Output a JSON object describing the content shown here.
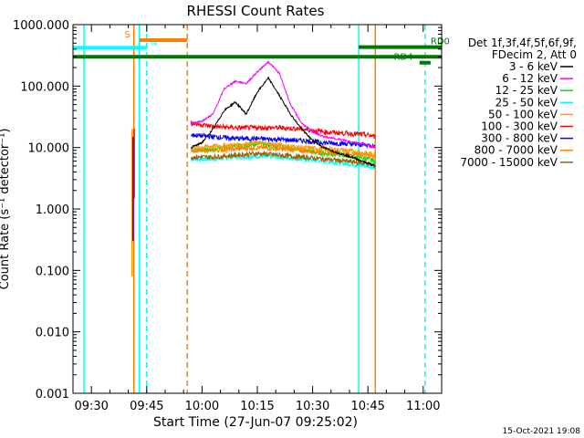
{
  "chart_data": {
    "type": "line",
    "title": "RHESSI Count Rates",
    "xlabel": "Start Time (27-Jun-07 09:25:02)",
    "ylabel": "Count Rate (s⁻¹ detector⁻¹)",
    "y_scale": "log",
    "ylim": [
      0.001,
      1000
    ],
    "xlim": [
      "09:25",
      "11:05"
    ],
    "x_ticks": [
      "09:30",
      "09:45",
      "10:00",
      "10:15",
      "10:30",
      "10:45",
      "11:00"
    ],
    "y_ticks": [
      "0.001",
      "0.010",
      "0.100",
      "1.000",
      "10.000",
      "100.000",
      "1000.000"
    ],
    "grid": false,
    "legend_position": "right",
    "legend_header": [
      "Det 1f,3f,4f,5f,6f,9f,",
      "FDecim 2, Att 0"
    ],
    "series": [
      {
        "name": "3 - 6 keV",
        "color": "#000000",
        "x": [
          "09:57",
          "10:00",
          "10:03",
          "10:06",
          "10:09",
          "10:12",
          "10:15",
          "10:18",
          "10:21",
          "10:24",
          "10:27",
          "10:30",
          "10:33",
          "10:36",
          "10:39",
          "10:42",
          "10:45",
          "10:47"
        ],
        "values": [
          10,
          12,
          20,
          40,
          55,
          35,
          80,
          135,
          70,
          35,
          20,
          13,
          10,
          8.5,
          7.5,
          6.5,
          5.5,
          5
        ]
      },
      {
        "name": "6 - 12 keV",
        "color": "#ff00ff",
        "x": [
          "09:57",
          "10:00",
          "10:03",
          "10:06",
          "10:09",
          "10:12",
          "10:15",
          "10:18",
          "10:21",
          "10:24",
          "10:27",
          "10:30",
          "10:33",
          "10:36",
          "10:39",
          "10:42",
          "10:45",
          "10:47"
        ],
        "values": [
          25,
          27,
          35,
          90,
          120,
          110,
          170,
          250,
          160,
          50,
          25,
          18,
          15,
          14,
          13,
          12,
          11,
          10
        ]
      },
      {
        "name": "12 - 25 keV",
        "color": "#00e000",
        "x": [
          "09:57",
          "10:03",
          "10:09",
          "10:15",
          "10:21",
          "10:27",
          "10:33",
          "10:39",
          "10:45",
          "10:47"
        ],
        "values": [
          9,
          9.5,
          10.5,
          11.5,
          10.5,
          9,
          8,
          7.5,
          6.5,
          6
        ]
      },
      {
        "name": "25 - 50 keV",
        "color": "#00ffff",
        "x": [
          "09:57",
          "10:03",
          "10:09",
          "10:15",
          "10:21",
          "10:27",
          "10:33",
          "10:39",
          "10:45",
          "10:47"
        ],
        "values": [
          6.5,
          6.5,
          7,
          7.2,
          7,
          6.5,
          6,
          5.5,
          5,
          4.8
        ]
      },
      {
        "name": "50 - 100 keV",
        "color": "#ff9900",
        "x": [
          "09:57",
          "10:03",
          "10:09",
          "10:15",
          "10:21",
          "10:27",
          "10:33",
          "10:39",
          "10:45",
          "10:47"
        ],
        "values": [
          10,
          10.5,
          11,
          12,
          11,
          10,
          9.5,
          9,
          8,
          7.5
        ]
      },
      {
        "name": "100 - 300 keV",
        "color": "#ff0000",
        "x": [
          "09:57",
          "10:03",
          "10:09",
          "10:15",
          "10:21",
          "10:27",
          "10:33",
          "10:39",
          "10:45",
          "10:47"
        ],
        "values": [
          25,
          22,
          21,
          21,
          21,
          20,
          18,
          17,
          16,
          15
        ]
      },
      {
        "name": "300 - 800 keV",
        "color": "#0000ff",
        "x": [
          "09:57",
          "10:03",
          "10:09",
          "10:15",
          "10:21",
          "10:27",
          "10:33",
          "10:39",
          "10:45",
          "10:47"
        ],
        "values": [
          16,
          15,
          14,
          14,
          13.5,
          13,
          12,
          11.5,
          11,
          10.5
        ]
      },
      {
        "name": "800 - 7000 keV",
        "color": "#ff8000",
        "x": [
          "09:57",
          "10:03",
          "10:09",
          "10:15",
          "10:21",
          "10:27",
          "10:33",
          "10:39",
          "10:45",
          "10:47"
        ],
        "values": [
          9,
          9,
          9.5,
          10,
          9.5,
          9,
          8.5,
          8,
          7.5,
          7
        ]
      },
      {
        "name": "7000 - 15000 keV",
        "color": "#a06000",
        "x": [
          "09:57",
          "10:03",
          "10:09",
          "10:15",
          "10:21",
          "10:27",
          "10:33",
          "10:39",
          "10:45",
          "10:47"
        ],
        "values": [
          7,
          7,
          7.5,
          8,
          7.5,
          7,
          6.5,
          6,
          5.5,
          5
        ]
      }
    ],
    "early_spikes": [
      {
        "x": "09:41.0",
        "from": 0.08,
        "to": 20,
        "color": "#ff9900"
      },
      {
        "x": "09:41.3",
        "from": 0.3,
        "to": 15,
        "color": "#0000ff"
      },
      {
        "x": "09:41.6",
        "from": 1.5,
        "to": 20,
        "color": "#ff0000"
      }
    ],
    "vertical_markers": [
      {
        "x": "09:28",
        "color": "#00ffff",
        "style": "solid"
      },
      {
        "x": "09:41.5",
        "color": "#ff8000",
        "style": "solid"
      },
      {
        "x": "09:43",
        "color": "#00ffff",
        "style": "solid"
      },
      {
        "x": "09:45",
        "color": "#00ffff",
        "style": "dashed"
      },
      {
        "x": "09:56",
        "color": "#ff8000",
        "style": "dashed"
      },
      {
        "x": "10:42.5",
        "color": "#00ffff",
        "style": "solid"
      },
      {
        "x": "10:47",
        "color": "#ff8000",
        "style": "solid"
      },
      {
        "x": "11:00.5",
        "color": "#00ffff",
        "style": "dashed"
      }
    ],
    "annotation_bars": [
      {
        "label": "N",
        "color": "#00ffff",
        "x_start": "09:25",
        "x_end": "09:45",
        "level": 420,
        "label_at": "09:46"
      },
      {
        "label": "S",
        "color": "#ff8000",
        "x_start": "09:43",
        "x_end": "09:56",
        "level": 560,
        "label_at": "09:39"
      },
      {
        "label": "",
        "color": "#007700",
        "x_start": "09:25",
        "x_end": "11:05",
        "level": 300
      },
      {
        "label": "RD0",
        "color": "#007700",
        "x_start": "10:42.5",
        "x_end": "11:05",
        "level": 430,
        "label_at": "11:02"
      },
      {
        "label": "RD4",
        "color": "#007700",
        "x_start": "10:59",
        "x_end": "11:02",
        "level": 240,
        "label_at": "10:52"
      }
    ]
  },
  "footer": {
    "timestamp": "15-Oct-2021 19:08"
  }
}
